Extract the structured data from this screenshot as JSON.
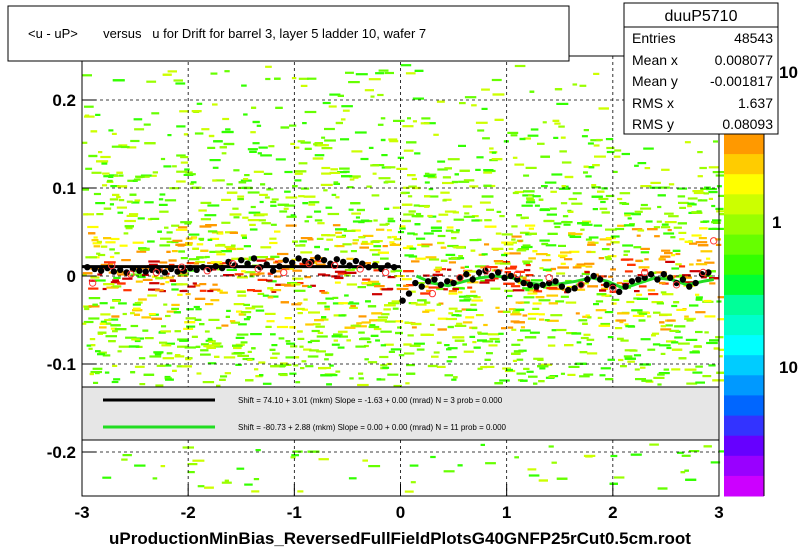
{
  "chart_data": {
    "type": "scatter",
    "title": "<u - uP>       versus   u for Drift for barrel 3, layer 5 ladder 10, wafer 7",
    "xlabel": "uProductionMinBias_ReversedFullFieldPlotsG40GNFP25rCut0.5cm.root",
    "ylabel": "",
    "xlim": [
      -3,
      3
    ],
    "ylim": [
      -0.25,
      0.25
    ],
    "x_ticks": [
      -3,
      -2,
      -1,
      0,
      1,
      2,
      3
    ],
    "y_ticks": [
      -0.2,
      -0.1,
      0,
      0.1,
      0.2
    ],
    "x_tick_labels": [
      "-3",
      "-2",
      "-1",
      "0",
      "1",
      "2",
      "3"
    ],
    "y_tick_labels": [
      "-0.2",
      "-0.1",
      "0",
      "0.1",
      "0.2"
    ],
    "colorbar": {
      "scale": "log",
      "tick_labels": [
        "1",
        "10"
      ],
      "top_label_partial": "10"
    },
    "grid": true,
    "stats_box": {
      "name": "duuP5710",
      "rows": [
        {
          "label": "Entries",
          "value": "48543"
        },
        {
          "label": "Mean x",
          "value": "0.008077"
        },
        {
          "label": "Mean y",
          "value": "-0.001817"
        },
        {
          "label": "RMS x",
          "value": "1.637"
        },
        {
          "label": "RMS y",
          "value": "0.08093"
        }
      ]
    },
    "legend": {
      "placement": "bottom",
      "entries": [
        {
          "color": "#000000",
          "text": "Shift =    74.10 + 3.01 (mkm) Slope =    -1.63 + 0.00 (mrad)  N = 3 prob = 0.000"
        },
        {
          "color": "#22dd22",
          "text": "Shift =   -80.73 + 2.88 (mkm) Slope =     0.00 + 0.00 (mrad)  N = 11 prob = 0.000"
        }
      ]
    },
    "series": [
      {
        "style": "black-points",
        "x": [
          -2.95,
          -2.88,
          -2.82,
          -2.76,
          -2.7,
          -2.64,
          -2.58,
          -2.52,
          -2.46,
          -2.4,
          -2.34,
          -2.28,
          -2.22,
          -2.16,
          -2.1,
          -2.04,
          -1.98,
          -1.92,
          -1.86,
          -1.8,
          -1.74,
          -1.68,
          -1.62,
          -1.56,
          -1.5,
          -1.44,
          -1.38,
          -1.32,
          -1.26,
          -1.2,
          -1.14,
          -1.08,
          -1.02,
          -0.96,
          -0.9,
          -0.84,
          -0.78,
          -0.72,
          -0.66,
          -0.6,
          -0.54,
          -0.48,
          -0.42,
          -0.36,
          -0.3,
          -0.24,
          -0.18,
          -0.12,
          -0.06,
          0.02,
          0.08,
          0.14,
          0.2,
          0.26,
          0.32,
          0.38,
          0.44,
          0.5,
          0.56,
          0.62,
          0.68,
          0.74,
          0.8,
          0.86,
          0.92,
          0.98,
          1.04,
          1.1,
          1.16,
          1.22,
          1.28,
          1.34,
          1.4,
          1.46,
          1.52,
          1.58,
          1.64,
          1.7,
          1.76,
          1.82,
          1.88,
          1.94,
          2.0,
          2.06,
          2.12,
          2.18,
          2.24,
          2.3,
          2.36,
          2.42,
          2.48,
          2.54,
          2.6,
          2.66,
          2.72,
          2.78,
          2.84,
          2.9
        ],
        "y": [
          0.01,
          0.008,
          0.006,
          0.009,
          0.005,
          0.007,
          0.004,
          0.008,
          0.006,
          0.005,
          0.007,
          0.006,
          0.004,
          0.008,
          0.005,
          0.006,
          0.009,
          0.007,
          0.01,
          0.008,
          0.011,
          0.009,
          0.016,
          0.012,
          0.018,
          0.014,
          0.02,
          0.01,
          0.013,
          0.006,
          0.011,
          0.018,
          0.015,
          0.02,
          0.017,
          0.016,
          0.021,
          0.018,
          0.014,
          0.019,
          0.016,
          0.012,
          0.017,
          0.014,
          0.01,
          0.012,
          0.008,
          0.012,
          0.01,
          -0.028,
          -0.02,
          -0.008,
          -0.012,
          -0.006,
          -0.004,
          -0.01,
          -0.006,
          -0.008,
          -0.002,
          0.002,
          -0.004,
          0.004,
          0.006,
          0.0,
          0.004,
          -0.002,
          0.0,
          -0.004,
          -0.008,
          -0.01,
          -0.012,
          -0.01,
          -0.008,
          -0.006,
          -0.012,
          -0.016,
          -0.014,
          -0.01,
          -0.004,
          0.0,
          -0.004,
          -0.01,
          -0.012,
          -0.018,
          -0.012,
          -0.006,
          -0.004,
          -0.002,
          0.002,
          -0.004,
          0.002,
          -0.002,
          -0.008,
          -0.004,
          -0.012,
          -0.008,
          0.002,
          0.004
        ]
      },
      {
        "style": "red-hollow-points",
        "x": [
          -2.9,
          -2.72,
          -2.54,
          -2.3,
          -2.06,
          -1.82,
          -1.58,
          -1.34,
          -1.1,
          -0.86,
          -0.62,
          -0.38,
          -0.14,
          0.3,
          0.56,
          0.82,
          1.1,
          1.4,
          1.7,
          2.0,
          2.3,
          2.6,
          2.85,
          2.95
        ],
        "y": [
          -0.008,
          0.012,
          0.002,
          0.004,
          0.01,
          0.006,
          0.014,
          0.008,
          0.004,
          0.014,
          0.012,
          0.008,
          0.004,
          -0.02,
          -0.002,
          0.008,
          0.002,
          -0.002,
          -0.01,
          -0.014,
          0.004,
          -0.01,
          0.004,
          0.04
        ]
      },
      {
        "style": "black-fit-line",
        "x": [
          -3,
          0
        ],
        "y": [
          0.0107,
          0.0107
        ]
      },
      {
        "style": "green-fit-line",
        "x": [
          0.15,
          0.3,
          0.45,
          0.6,
          0.75,
          0.9,
          1.05,
          1.2,
          1.35,
          1.5,
          1.65,
          1.8,
          1.95,
          2.1,
          2.25,
          2.4,
          2.55,
          2.7,
          2.85,
          2.95
        ],
        "y": [
          0.0,
          -0.008,
          -0.011,
          -0.006,
          -0.002,
          0.0,
          -0.002,
          -0.008,
          -0.01,
          -0.009,
          -0.006,
          -0.002,
          -0.006,
          -0.014,
          -0.008,
          -0.002,
          -0.004,
          -0.01,
          -0.006,
          -0.004
        ]
      }
    ],
    "colors": {
      "frame_bg": "#ffffff",
      "band_colors": [
        "#33ff00",
        "#66ff00",
        "#99ff00",
        "#ccff00",
        "#ffff00",
        "#ffcc00",
        "#ff9900",
        "#ff3300",
        "#cc0000",
        "#00ff66"
      ],
      "colorbar": [
        "#ff9900",
        "#ffcc00",
        "#ffff00",
        "#ccff00",
        "#99ff00",
        "#66ff00",
        "#33ff00",
        "#00ff33",
        "#00ff99",
        "#00ffcc",
        "#00ffff",
        "#00ccff",
        "#0099ff",
        "#0066ff",
        "#3333ff",
        "#6600ff",
        "#9900ff",
        "#cc00ff"
      ]
    }
  }
}
